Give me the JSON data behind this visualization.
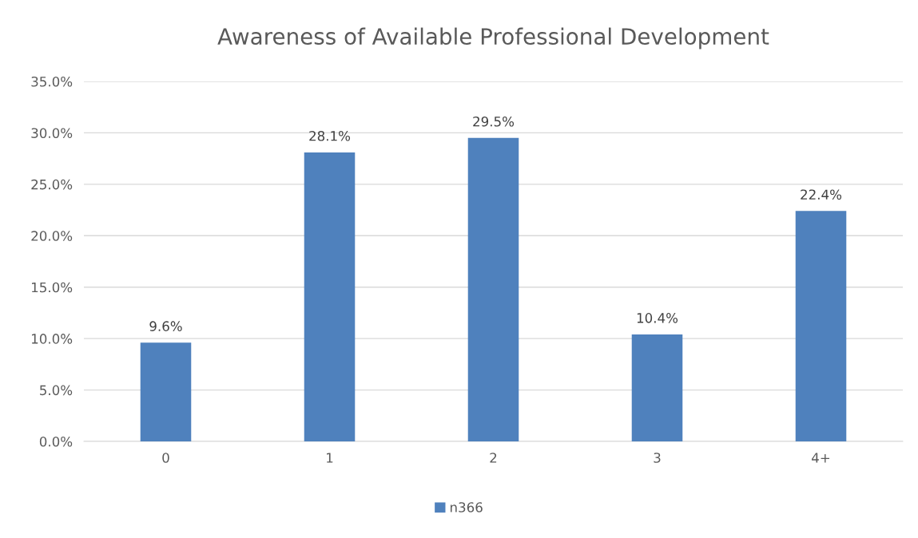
{
  "chart_data": {
    "type": "bar",
    "title": "Awareness of Available Professional Development",
    "categories": [
      "0",
      "1",
      "2",
      "3",
      "4+"
    ],
    "series": [
      {
        "name": "n366",
        "color": "#4f81bd",
        "values": [
          9.6,
          28.1,
          29.5,
          10.4,
          22.4
        ],
        "value_labels": [
          "9.6%",
          "28.1%",
          "29.5%",
          "10.4%",
          "22.4%"
        ]
      }
    ],
    "ylim": [
      0,
      35
    ],
    "yticks": [
      {
        "value": 0,
        "label": "0.0%"
      },
      {
        "value": 5,
        "label": "5.0%"
      },
      {
        "value": 10,
        "label": "10.0%"
      },
      {
        "value": 15,
        "label": "15.0%"
      },
      {
        "value": 20,
        "label": "20.0%"
      },
      {
        "value": 25,
        "label": "25.0%"
      },
      {
        "value": 30,
        "label": "30.0%"
      },
      {
        "value": 35,
        "label": "35.0%"
      }
    ],
    "grid": "y",
    "legend": "bottom"
  }
}
